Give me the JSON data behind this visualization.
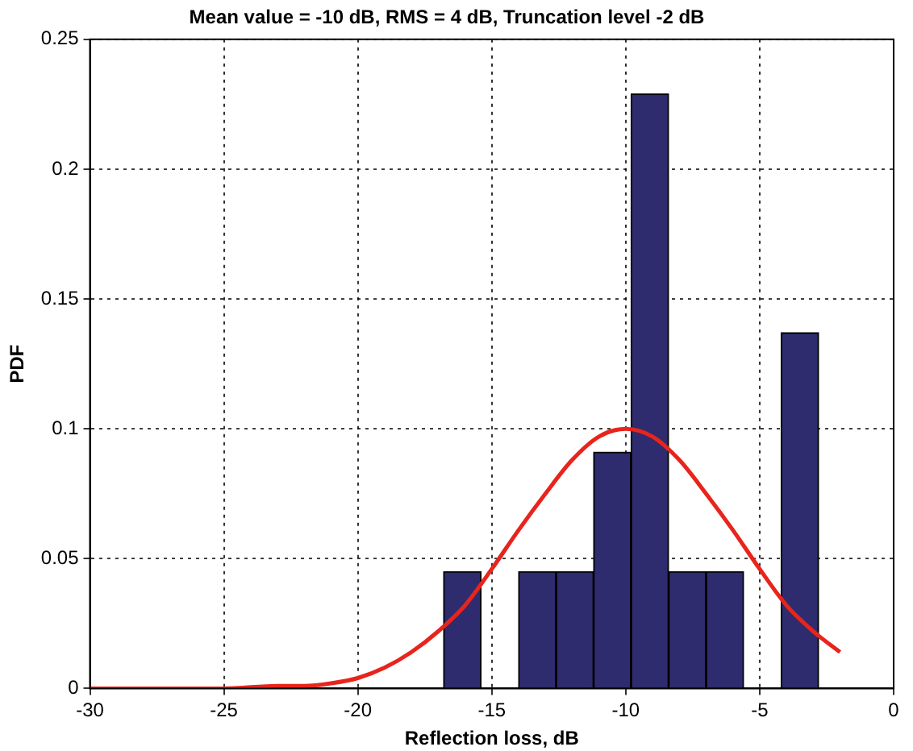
{
  "chart_data": {
    "type": "histogram",
    "title": "Mean value = -10 dB, RMS = 4 dB, Truncation level -2 dB",
    "xlabel": "Reflection loss, dB",
    "ylabel": "PDF",
    "bins": [
      -16.8,
      -15.4,
      -14.0,
      -12.6,
      -11.2,
      -9.8,
      -8.4,
      -7.0,
      -5.6,
      -4.2,
      -2.8
    ],
    "values": [
      0.045,
      0,
      0.045,
      0.045,
      0.091,
      0.229,
      0.045,
      0.045,
      0,
      0.137
    ],
    "color": "#2e2c6e",
    "series": [
      {
        "type": "line",
        "color": "#e8241c",
        "x": [
          -30,
          -25,
          -23,
          -22,
          -21,
          -20,
          -19,
          -18,
          -17,
          -16,
          -15,
          -14,
          -13,
          -12,
          -11,
          -10,
          -9,
          -8,
          -7,
          -6,
          -5,
          -4,
          -3,
          -2
        ],
        "values": [
          0,
          0,
          0.001,
          0.001,
          0.002,
          0.004,
          0.008,
          0.014,
          0.022,
          0.032,
          0.046,
          0.061,
          0.075,
          0.088,
          0.097,
          0.1,
          0.097,
          0.088,
          0.075,
          0.061,
          0.046,
          0.032,
          0.022,
          0.014
        ]
      }
    ],
    "xlim": [
      -30,
      0
    ],
    "xticks": [
      -30,
      -25,
      -20,
      -15,
      -10,
      -5,
      0
    ],
    "ylim": [
      0,
      0.25
    ],
    "yticks": [
      0,
      0.05,
      0.1,
      0.15,
      0.2,
      0.25
    ],
    "grid": true,
    "legend": false,
    "marker": "none",
    "line_style": "solid"
  }
}
